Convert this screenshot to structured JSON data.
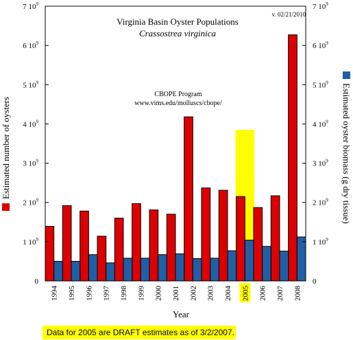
{
  "chart_data": {
    "type": "bar",
    "title": "Virginia Basin Oyster Populations",
    "subtitle": "Crassostrea virginica",
    "version": "v. 02/21/2010",
    "annotation_line1": "CBOPE Program",
    "annotation_line2": "www.vims.edu/molluscs/cbope/",
    "xlabel": "Year",
    "ylabel_left": "Estimated number of oysters",
    "ylabel_right": "Estimated oyster biomass (g dry tissue)",
    "categories": [
      "1994",
      "1995",
      "1996",
      "1997",
      "1998",
      "1999",
      "2000",
      "2001",
      "2002",
      "2003",
      "2004",
      "2005",
      "2006",
      "2007",
      "2008"
    ],
    "highlight_category": "2005",
    "ylim": [
      0,
      7000000000
    ],
    "yticks": [
      0,
      1000000000,
      2000000000,
      3000000000,
      4000000000,
      5000000000,
      6000000000,
      7000000000
    ],
    "ytick_labels": [
      "0",
      "1 10",
      "2 10",
      "3 10",
      "4 10",
      "5 10",
      "6 10",
      "7 10"
    ],
    "ytick_exponent": "9",
    "series": [
      {
        "name": "Estimated number of oysters",
        "axis": "left",
        "color": "#dd0000",
        "values": [
          1390000000,
          1920000000,
          1780000000,
          1140000000,
          1600000000,
          1970000000,
          1810000000,
          1700000000,
          4180000000,
          2370000000,
          2310000000,
          2150000000,
          1870000000,
          2170000000,
          6270000000
        ]
      },
      {
        "name": "Estimated oyster biomass (g dry tissue)",
        "axis": "right",
        "color": "#1f5fa6",
        "values": [
          500000000,
          500000000,
          670000000,
          460000000,
          580000000,
          580000000,
          670000000,
          690000000,
          570000000,
          580000000,
          770000000,
          1040000000,
          880000000,
          760000000,
          1120000000
        ]
      }
    ],
    "highlight_color": "#ffff00",
    "grid": false,
    "legend": "axis-labels"
  },
  "footnote": "Data for 2005 are DRAFT estimates as of 3/2/2007."
}
